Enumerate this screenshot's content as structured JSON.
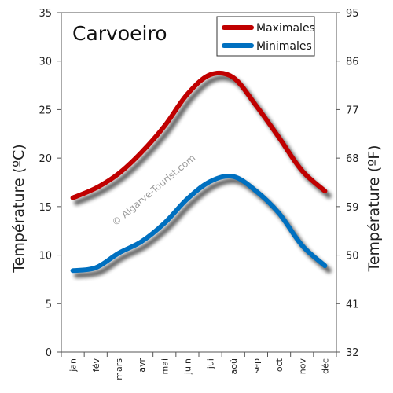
{
  "chart_data": {
    "type": "line",
    "title": "Carvoeiro",
    "watermark": "© Algarve-Tourist.com",
    "ylabel_left": "Température (ºC)",
    "ylabel_right": "Température (ºF)",
    "categories": [
      "jan",
      "fév",
      "mars",
      "avr",
      "mai",
      "juin",
      "jui",
      "aoû",
      "sep",
      "oct",
      "nov",
      "déc"
    ],
    "ylim": [
      0,
      35
    ],
    "yticks_left": [
      "0",
      "5",
      "10",
      "15",
      "20",
      "25",
      "30",
      "35"
    ],
    "yticks_right": [
      "32",
      "41",
      "50",
      "59",
      "68",
      "77",
      "86",
      "95"
    ],
    "grid": false,
    "legend_position": "top-right",
    "series": [
      {
        "name": "Maximales",
        "color": "#c00000",
        "values": [
          15.9,
          16.9,
          18.4,
          20.6,
          23.3,
          26.6,
          28.6,
          28.3,
          25.4,
          22.1,
          18.7,
          16.6
        ]
      },
      {
        "name": "Minimales",
        "color": "#0070c0",
        "values": [
          8.4,
          8.7,
          10.2,
          11.4,
          13.3,
          15.8,
          17.6,
          18.1,
          16.6,
          14.3,
          11.0,
          8.9
        ]
      }
    ]
  }
}
